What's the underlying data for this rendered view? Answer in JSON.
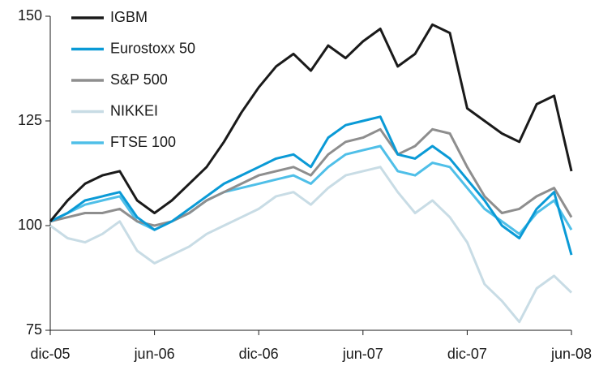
{
  "chart_data": {
    "type": "line",
    "categories": [
      "dic-05",
      null,
      null,
      null,
      null,
      null,
      "jun-06",
      null,
      null,
      null,
      null,
      null,
      "dic-06",
      null,
      null,
      null,
      null,
      null,
      "jun-07",
      null,
      null,
      null,
      null,
      null,
      "dic-07",
      null,
      null,
      null,
      null,
      null,
      "jun-08"
    ],
    "series": [
      {
        "name": "IGBM",
        "color": "#1a1a1a",
        "values": [
          101,
          106,
          110,
          112,
          113,
          106,
          103,
          106,
          110,
          114,
          120,
          127,
          133,
          138,
          141,
          137,
          143,
          140,
          144,
          147,
          138,
          141,
          148,
          146,
          128,
          125,
          122,
          120,
          129,
          131,
          113
        ]
      },
      {
        "name": "Eurostoxx 50",
        "color": "#0a9ad6",
        "values": [
          101,
          103,
          106,
          107,
          108,
          102,
          99,
          101,
          104,
          107,
          110,
          112,
          114,
          116,
          117,
          114,
          121,
          124,
          125,
          126,
          117,
          116,
          119,
          116,
          111,
          106,
          100,
          97,
          104,
          108,
          93
        ]
      },
      {
        "name": "S&P 500",
        "color": "#8e8e8e",
        "values": [
          101,
          102,
          103,
          103,
          104,
          101,
          100,
          101,
          103,
          106,
          108,
          110,
          112,
          113,
          114,
          112,
          117,
          120,
          121,
          123,
          117,
          119,
          123,
          122,
          114,
          107,
          103,
          104,
          107,
          109,
          102
        ]
      },
      {
        "name": "NIKKEI",
        "color": "#c8dce5",
        "values": [
          100,
          97,
          96,
          98,
          101,
          94,
          91,
          93,
          95,
          98,
          100,
          102,
          104,
          107,
          108,
          105,
          109,
          112,
          113,
          114,
          108,
          103,
          106,
          102,
          96,
          86,
          82,
          77,
          85,
          88,
          84
        ]
      },
      {
        "name": "FTSE 100",
        "color": "#4fbfe8",
        "values": [
          101,
          103,
          105,
          106,
          107,
          101,
          99,
          101,
          103,
          106,
          108,
          109,
          110,
          111,
          112,
          110,
          114,
          117,
          118,
          119,
          113,
          112,
          115,
          114,
          109,
          104,
          101,
          98,
          103,
          106,
          99
        ]
      }
    ],
    "ylim": [
      75,
      150
    ],
    "yticks": [
      75,
      100,
      125,
      150
    ],
    "legend": "upper left"
  }
}
